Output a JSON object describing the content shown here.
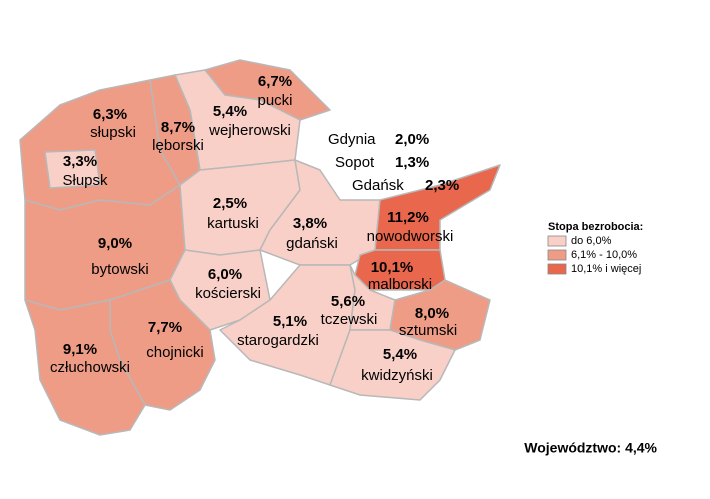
{
  "regions": [
    {
      "name": "pucki",
      "value": "6,7%",
      "color": "#ef9c86"
    },
    {
      "name": "wejherowski",
      "value": "5,4%",
      "color": "#f9d0c7"
    },
    {
      "name": "lęborski",
      "value": "8,7%",
      "color": "#ef9c86"
    },
    {
      "name": "słupski",
      "value": "6,3%",
      "color": "#ef9c86"
    },
    {
      "name": "Słupsk",
      "value": "3,3%",
      "color": "#f9d0c7"
    },
    {
      "name": "bytowski",
      "value": "9,0%",
      "color": "#ef9c86"
    },
    {
      "name": "kartuski",
      "value": "2,5%",
      "color": "#f9d0c7"
    },
    {
      "name": "gdański",
      "value": "3,8%",
      "color": "#f9d0c7"
    },
    {
      "name": "nowodworski",
      "value": "11,2%",
      "color": "#e8674d"
    },
    {
      "name": "malborski",
      "value": "10,1%",
      "color": "#e8674d"
    },
    {
      "name": "kościerski",
      "value": "6,0%",
      "color": "#f9d0c7"
    },
    {
      "name": "starogardzki",
      "value": "5,1%",
      "color": "#f9d0c7"
    },
    {
      "name": "tczewski",
      "value": "5,6%",
      "color": "#f9d0c7"
    },
    {
      "name": "sztumski",
      "value": "8,0%",
      "color": "#ef9c86"
    },
    {
      "name": "kwidzyński",
      "value": "5,4%",
      "color": "#f9d0c7"
    },
    {
      "name": "chojnicki",
      "value": "7,7%",
      "color": "#ef9c86"
    },
    {
      "name": "człuchowski",
      "value": "9,1%",
      "color": "#ef9c86"
    }
  ],
  "cities": [
    {
      "name": "Gdynia",
      "value": "2,0%"
    },
    {
      "name": "Sopot",
      "value": "1,3%"
    },
    {
      "name": "Gdańsk",
      "value": "2,3%"
    }
  ],
  "legend": {
    "title": "Stopa bezrobocia:",
    "entries": [
      {
        "label": "do 6,0%",
        "color": "#f9d0c7"
      },
      {
        "label": "6,1% - 10,0%",
        "color": "#ef9c86"
      },
      {
        "label": "10,1% i więcej",
        "color": "#e8674d"
      }
    ]
  },
  "footer": "Województwo: 4,4%"
}
